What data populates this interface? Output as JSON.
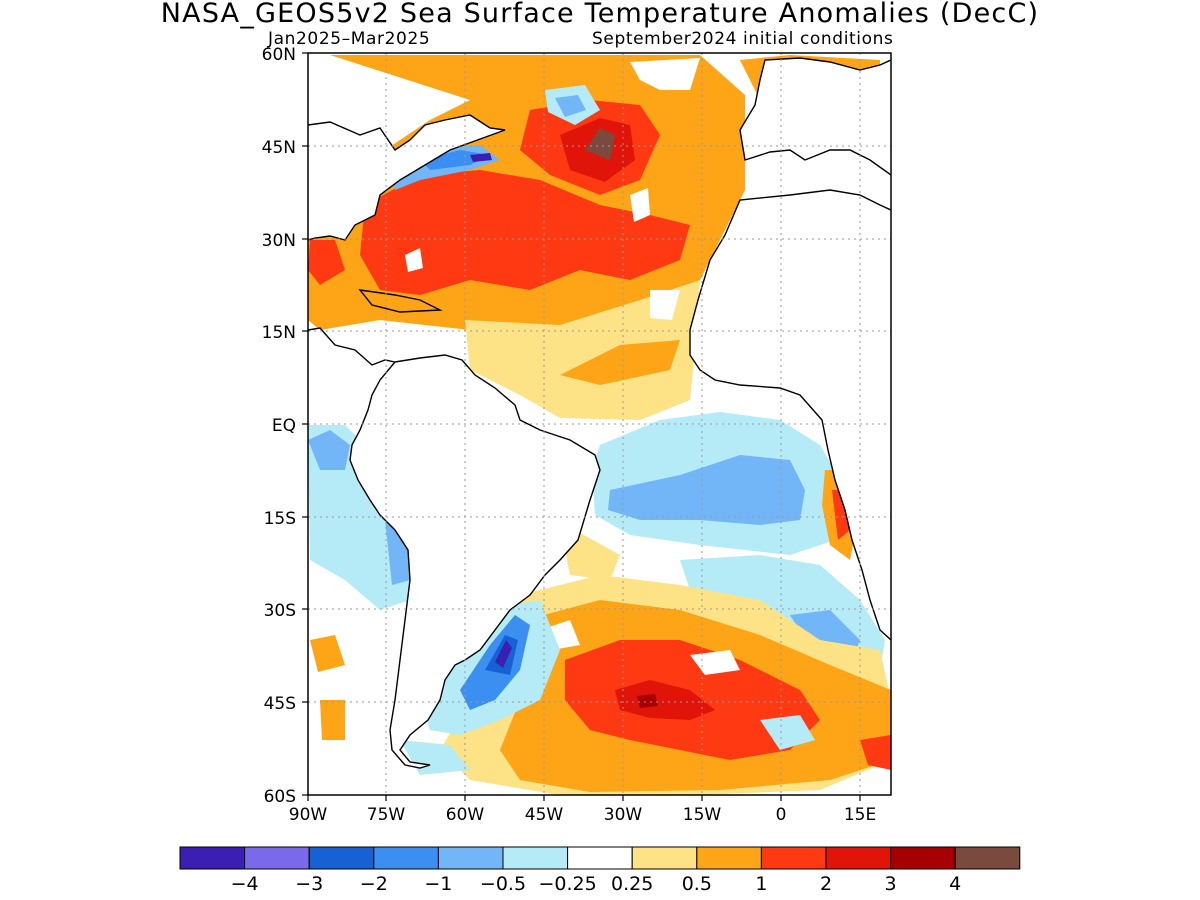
{
  "title": "NASA_GEOS5v2 Sea Surface Temperature Anomalies (DecC)",
  "subtitle_left": "Jan2025–Mar2025",
  "subtitle_right": "September2024 initial conditions",
  "lat_labels": [
    "60N",
    "45N",
    "30N",
    "15N",
    "EQ",
    "15S",
    "30S",
    "45S",
    "60S"
  ],
  "lon_labels": [
    "90W",
    "75W",
    "60W",
    "45W",
    "30W",
    "15W",
    "0",
    "15E"
  ],
  "colorbar": {
    "colors": [
      "#3a1fb2",
      "#7a6aeb",
      "#1662d4",
      "#3b8ff0",
      "#72b6f7",
      "#b4ebf7",
      "#ffffff",
      "#fde385",
      "#fda417",
      "#ff3a12",
      "#e01408",
      "#a60005",
      "#7a4a3f"
    ],
    "labels": [
      "−4",
      "−3",
      "−2",
      "−1",
      "−0.5",
      "−0.25",
      "0.25",
      "0.5",
      "1",
      "2",
      "3",
      "4"
    ]
  }
}
